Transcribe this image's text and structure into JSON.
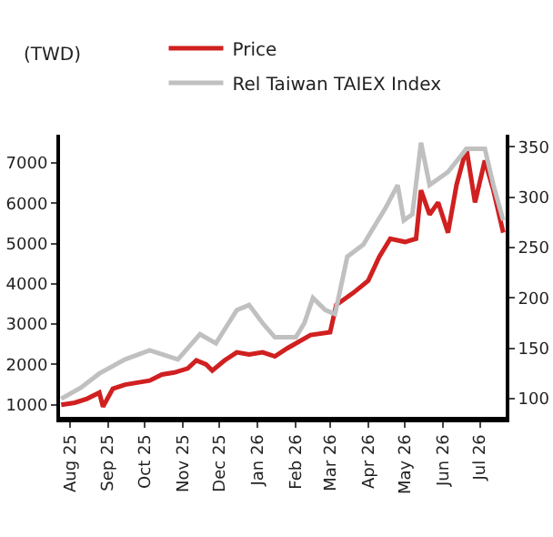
{
  "chart_data": {
    "type": "line",
    "ylabel": "(TWD)",
    "legend": "top",
    "grid": false,
    "marker": "none",
    "line_style": "solid",
    "xlim": [
      "2025-07-24",
      "2026-07-22"
    ],
    "xticks": [
      {
        "value": "2025-08-01",
        "label": "Aug 25"
      },
      {
        "value": "2025-09-01",
        "label": "Sep 25"
      },
      {
        "value": "2025-10-01",
        "label": "Oct 25"
      },
      {
        "value": "2025-11-01",
        "label": "Nov 25"
      },
      {
        "value": "2025-12-01",
        "label": "Dec 25"
      },
      {
        "value": "2026-01-01",
        "label": "Jan 26"
      },
      {
        "value": "2026-02-01",
        "label": "Feb 26"
      },
      {
        "value": "2026-03-01",
        "label": "Mar 26"
      },
      {
        "value": "2026-04-01",
        "label": "Apr 26"
      },
      {
        "value": "2026-05-01",
        "label": "May 26"
      },
      {
        "value": "2026-06-01",
        "label": "Jun 26"
      },
      {
        "value": "2026-07-01",
        "label": "Jul 26"
      }
    ],
    "ylim": [
      700,
      7700
    ],
    "yticks": [
      1000,
      2000,
      3000,
      4000,
      5000,
      6000,
      7000
    ],
    "y2lim": [
      82,
      362
    ],
    "y2ticks": [
      100,
      150,
      200,
      250,
      300,
      350
    ],
    "series": [
      {
        "name": "Rel Taiwan TAIEX Index",
        "color": "#c0c0c0",
        "axis": "y2",
        "x": [
          "2025-07-25",
          "2025-08-10",
          "2025-08-25",
          "2025-09-15",
          "2025-10-05",
          "2025-10-28",
          "2025-11-15",
          "2025-11-28",
          "2025-12-15",
          "2025-12-25",
          "2026-01-05",
          "2026-01-15",
          "2026-02-01",
          "2026-02-08",
          "2026-02-15",
          "2026-02-25",
          "2026-03-05",
          "2026-03-15",
          "2026-03-28",
          "2026-04-15",
          "2026-04-25",
          "2026-04-30",
          "2026-05-07",
          "2026-05-14",
          "2026-05-21",
          "2026-06-05",
          "2026-06-20",
          "2026-07-05",
          "2026-07-12",
          "2026-07-20"
        ],
        "values": [
          100,
          111,
          125,
          139,
          148,
          139,
          164,
          155,
          188,
          193,
          175,
          161,
          161,
          175,
          200,
          188,
          184,
          241,
          253,
          289,
          312,
          277,
          283,
          354,
          312,
          325,
          348,
          348,
          312,
          277
        ]
      },
      {
        "name": "Price",
        "color": "#d02020",
        "x": [
          "2025-07-25",
          "2025-08-05",
          "2025-08-15",
          "2025-08-25",
          "2025-08-28",
          "2025-09-05",
          "2025-09-15",
          "2025-09-25",
          "2025-10-05",
          "2025-10-15",
          "2025-10-25",
          "2025-11-05",
          "2025-11-12",
          "2025-11-20",
          "2025-11-25",
          "2025-12-05",
          "2025-12-15",
          "2025-12-25",
          "2026-01-05",
          "2026-01-15",
          "2026-01-25",
          "2026-02-13",
          "2026-03-01",
          "2026-03-06",
          "2026-03-20",
          "2026-04-01",
          "2026-04-10",
          "2026-04-19",
          "2026-05-01",
          "2026-05-10",
          "2026-05-14",
          "2026-05-21",
          "2026-05-28",
          "2026-06-05",
          "2026-06-12",
          "2026-06-20",
          "2026-06-27",
          "2026-07-05",
          "2026-07-12",
          "2026-07-20"
        ],
        "values": [
          1000,
          1050,
          1150,
          1300,
          950,
          1400,
          1500,
          1550,
          1600,
          1750,
          1800,
          1900,
          2100,
          2000,
          1850,
          2100,
          2300,
          2250,
          2300,
          2200,
          2400,
          2730,
          2800,
          3480,
          3780,
          4080,
          4670,
          5120,
          5040,
          5120,
          6320,
          5720,
          6020,
          5270,
          6460,
          7360,
          6020,
          7060,
          6320,
          5270
        ]
      }
    ]
  }
}
